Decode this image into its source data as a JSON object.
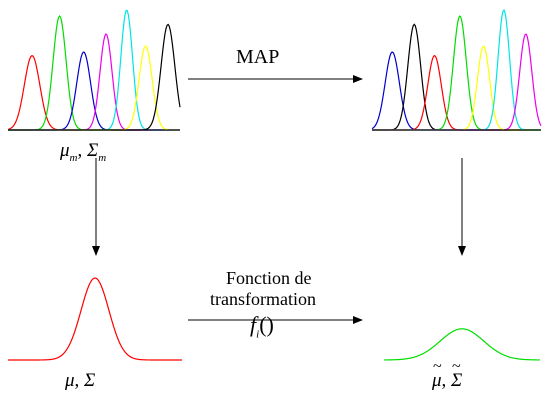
{
  "labels": {
    "map": "MAP",
    "transform_line1": "Fonction de",
    "transform_line2": "transformation",
    "transform_fn": "f",
    "transform_fn_sub": "i",
    "transform_fn_args": "()",
    "mu_m": "μ",
    "sigma_m": "Σ",
    "m_sub": "m",
    "mu": "μ",
    "sigma": "Σ",
    "mu_tilde": "μ",
    "sigma_tilde": "Σ",
    "sep": ","
  },
  "colors": {
    "red": "#ff0000",
    "green": "#00dd00",
    "blue": "#0000cc",
    "magenta": "#ee00ee",
    "cyan": "#00e5e5",
    "yellow": "#ffff00",
    "black": "#000000",
    "axis": "#000000"
  },
  "mixtures": [
    {
      "name": "source-mixture",
      "components": [
        {
          "color": "red",
          "mean": 0.14,
          "std": 0.045,
          "height": 0.62
        },
        {
          "color": "green",
          "mean": 0.3,
          "std": 0.038,
          "height": 0.95
        },
        {
          "color": "blue",
          "mean": 0.44,
          "std": 0.04,
          "height": 0.65
        },
        {
          "color": "magenta",
          "mean": 0.57,
          "std": 0.035,
          "height": 0.8
        },
        {
          "color": "cyan",
          "mean": 0.69,
          "std": 0.034,
          "height": 1.0
        },
        {
          "color": "yellow",
          "mean": 0.8,
          "std": 0.038,
          "height": 0.7
        },
        {
          "color": "black",
          "mean": 0.93,
          "std": 0.04,
          "height": 0.88
        }
      ]
    },
    {
      "name": "adapted-mixture",
      "components": [
        {
          "color": "blue",
          "mean": 0.12,
          "std": 0.042,
          "height": 0.65
        },
        {
          "color": "black",
          "mean": 0.25,
          "std": 0.038,
          "height": 0.88
        },
        {
          "color": "red",
          "mean": 0.37,
          "std": 0.04,
          "height": 0.62
        },
        {
          "color": "green",
          "mean": 0.52,
          "std": 0.038,
          "height": 0.95
        },
        {
          "color": "yellow",
          "mean": 0.66,
          "std": 0.036,
          "height": 0.7
        },
        {
          "color": "cyan",
          "mean": 0.78,
          "std": 0.034,
          "height": 1.0
        },
        {
          "color": "magenta",
          "mean": 0.91,
          "std": 0.036,
          "height": 0.8
        }
      ]
    }
  ],
  "single_gaussians": [
    {
      "name": "global-gaussian",
      "color": "red",
      "std": 0.08,
      "height": 1.0
    },
    {
      "name": "transformed-gaussian",
      "color": "green",
      "std": 0.14,
      "height": 0.38
    }
  ]
}
